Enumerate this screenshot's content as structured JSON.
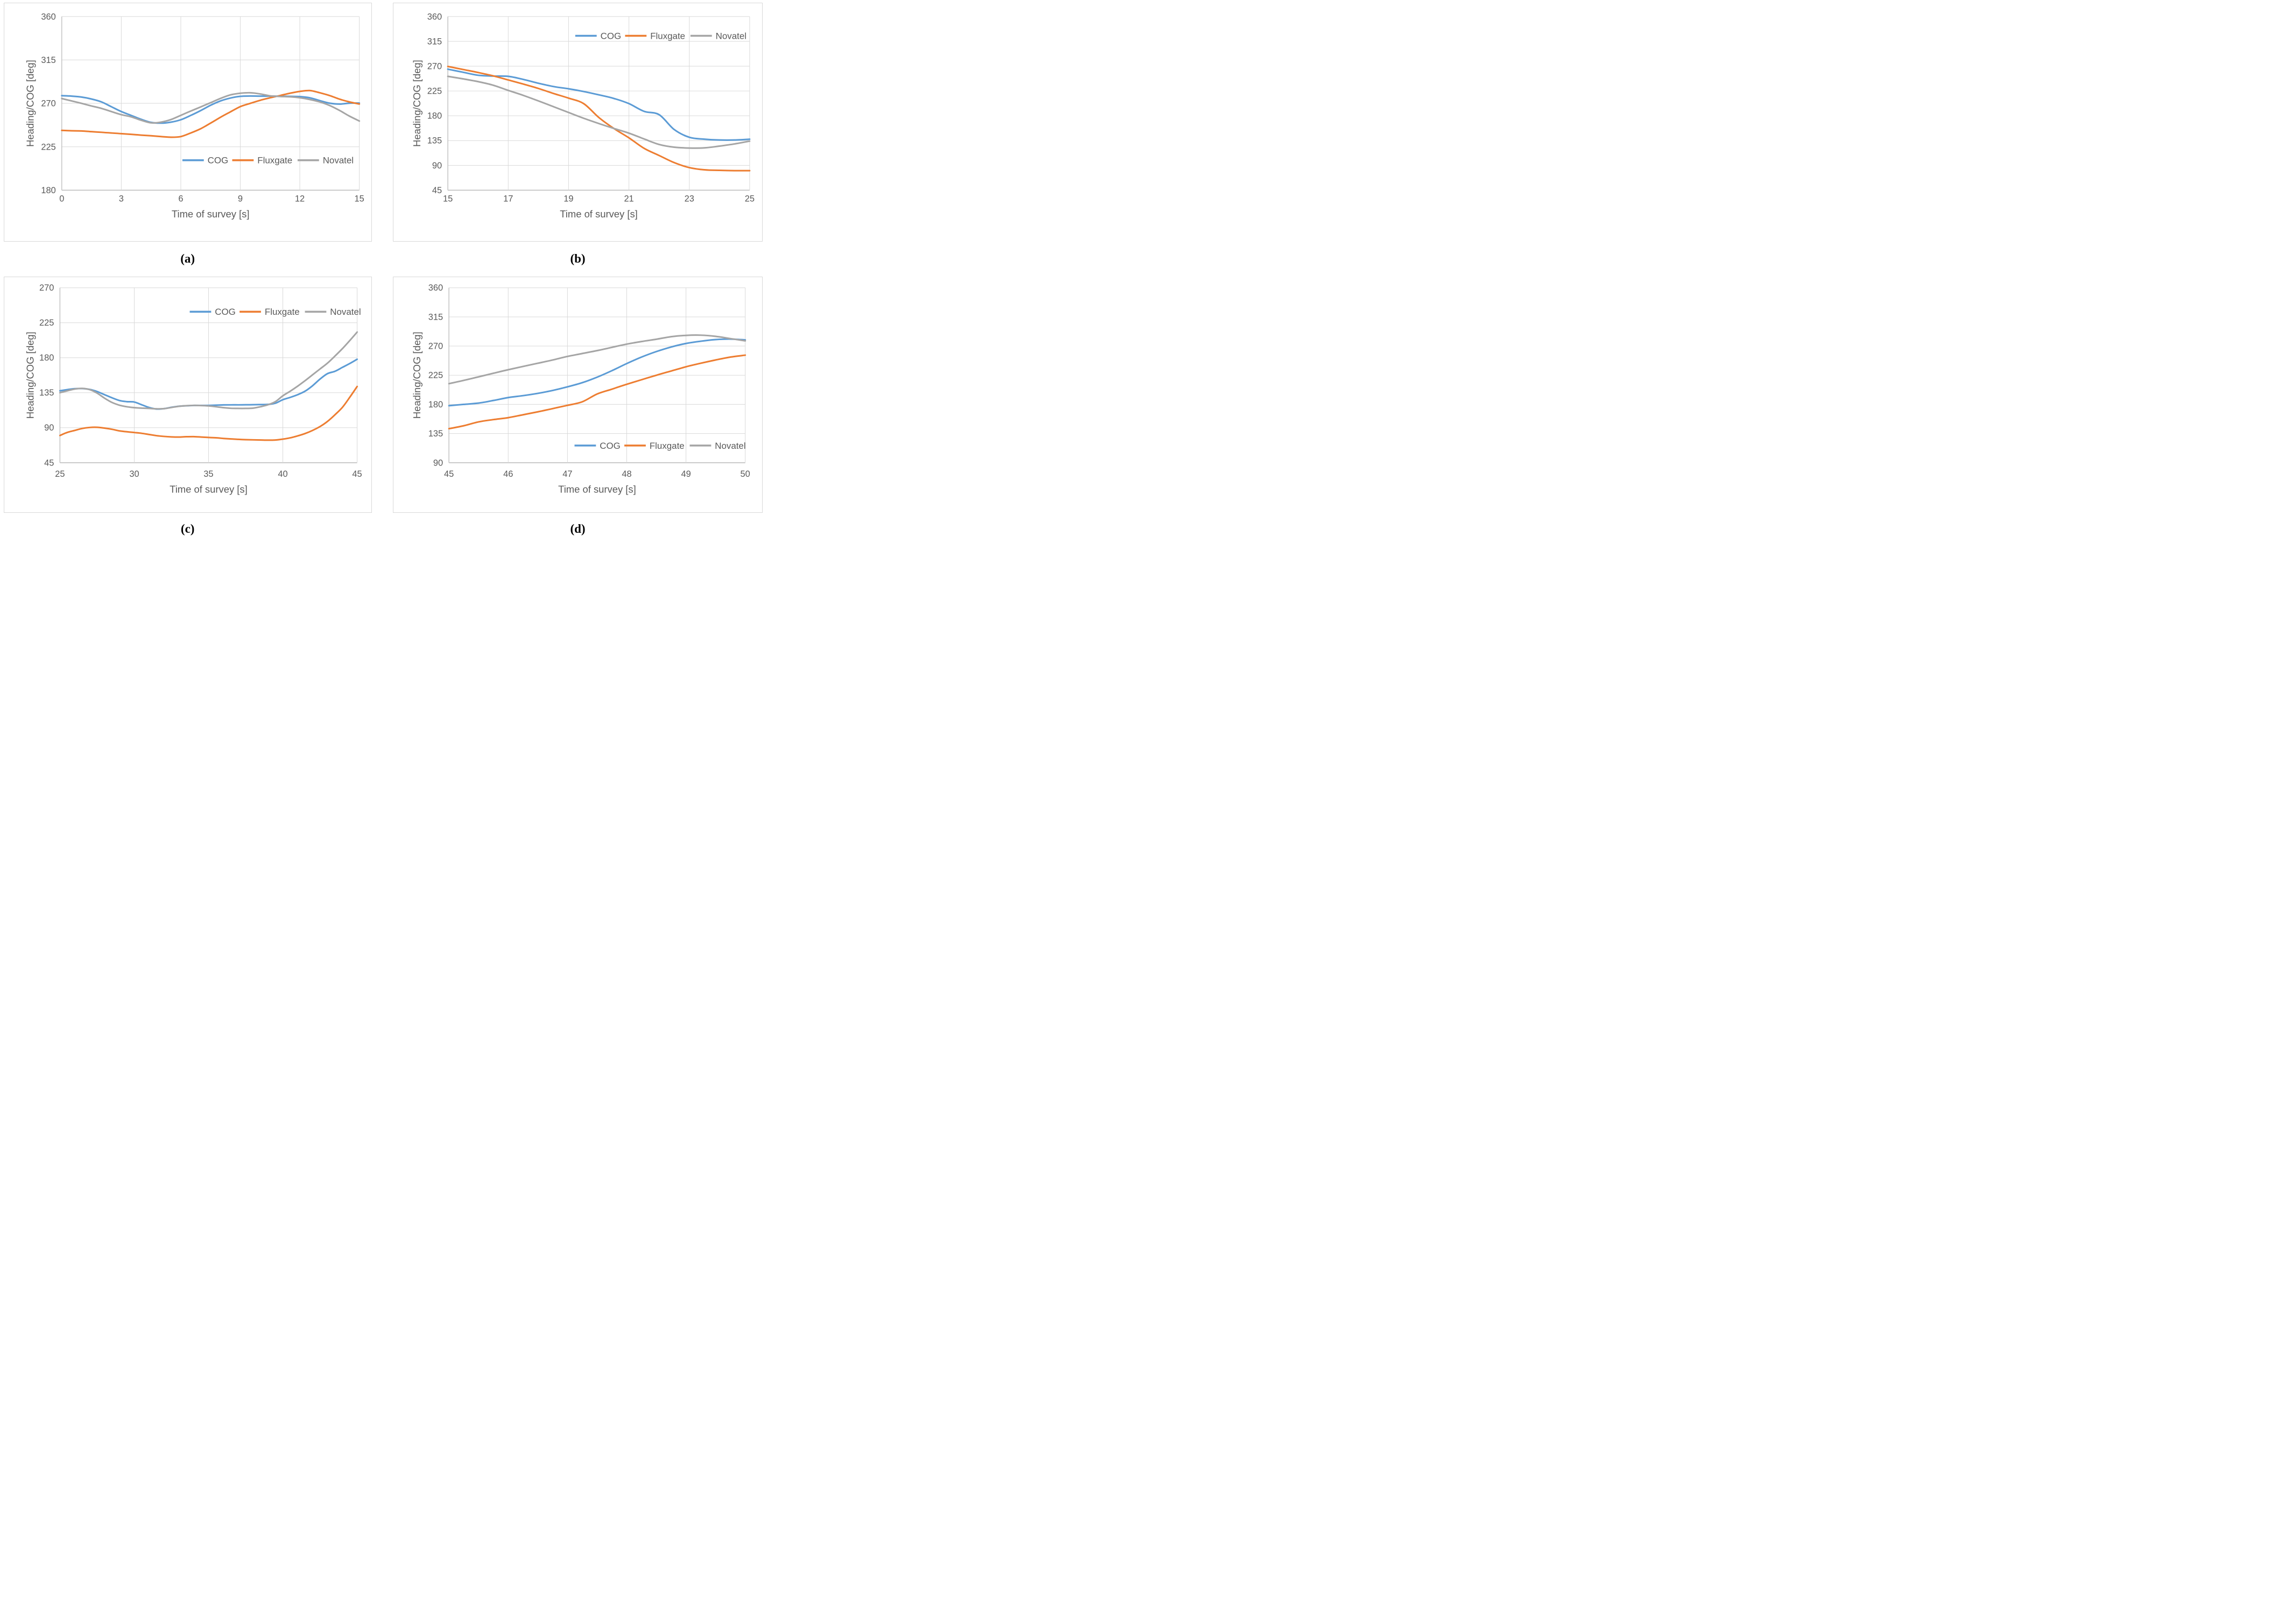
{
  "figure": {
    "description": "Four line charts comparing heading sensors over survey time windows",
    "colors": {
      "cog": "#5B9BD5",
      "fluxgate": "#ED7D31",
      "novatel": "#A5A5A5",
      "gridline": "#D9D9D9",
      "axis_line": "#BFBFBF",
      "text": "#595959",
      "box_border": "#D9D9D9",
      "background": "#FFFFFF"
    }
  },
  "captions": {
    "a": "(a)",
    "b": "(b)",
    "c": "(c)",
    "d": "(d)"
  },
  "chart_data": [
    {
      "id": "a",
      "type": "line",
      "title": "",
      "xlabel": "Time of survey [s]",
      "ylabel": "Heading/COG [deg]",
      "xlim": [
        0,
        15
      ],
      "ylim": [
        180,
        360
      ],
      "x_ticks": [
        0,
        3,
        6,
        9,
        12,
        15
      ],
      "y_ticks": [
        180,
        225,
        270,
        315,
        360
      ],
      "grid": true,
      "legend_position": "inside-bottom-right",
      "x": [
        0,
        0.5,
        1,
        1.5,
        2,
        2.5,
        3,
        3.5,
        4,
        4.5,
        5,
        5.5,
        6,
        6.5,
        7,
        7.5,
        8,
        8.5,
        9,
        9.5,
        10,
        10.5,
        11,
        11.5,
        12,
        12.5,
        13,
        13.5,
        14,
        14.5,
        15
      ],
      "series": [
        {
          "name": "COG",
          "values": [
            278,
            277.5,
            276.5,
            274.5,
            271.5,
            266.5,
            261.5,
            257.5,
            253.5,
            250.3,
            249.5,
            250.5,
            253,
            257.5,
            262.5,
            268,
            272.5,
            275.5,
            277.3,
            277.6,
            277.5,
            277.5,
            277.4,
            277.3,
            277,
            275.8,
            272.9,
            270.2,
            269.3,
            270.2,
            270.3
          ]
        },
        {
          "name": "Fluxgate",
          "values": [
            242,
            241.6,
            241.4,
            240.7,
            240,
            239.3,
            238.6,
            237.9,
            237.1,
            236.4,
            235.6,
            234.9,
            235.6,
            239.3,
            243.7,
            249.5,
            255.6,
            261.2,
            266.6,
            270,
            273.2,
            275.8,
            278.1,
            280.5,
            282.4,
            283.3,
            281,
            278.1,
            274.4,
            271.5,
            269.3
          ]
        },
        {
          "name": "Novatel",
          "values": [
            275,
            272.5,
            270,
            267.3,
            264.8,
            261.5,
            258.3,
            256,
            252.5,
            249.8,
            250.5,
            253.2,
            257.6,
            262,
            266.3,
            270.7,
            275.1,
            278.8,
            280.5,
            281,
            279.8,
            277.8,
            277.2,
            276.8,
            275.8,
            274,
            271.5,
            267.8,
            262.7,
            256.8,
            251.7
          ]
        }
      ]
    },
    {
      "id": "b",
      "type": "line",
      "title": "",
      "xlabel": "Time of survey [s]",
      "ylabel": "Heading/COG [deg]",
      "xlim": [
        15,
        25
      ],
      "ylim": [
        45,
        360
      ],
      "x_ticks": [
        15,
        17,
        19,
        21,
        23,
        25
      ],
      "y_ticks": [
        45,
        90,
        135,
        180,
        225,
        270,
        315,
        360
      ],
      "grid": true,
      "legend_position": "inside-top-right",
      "x": [
        15,
        15.5,
        16,
        16.5,
        17,
        17.5,
        18,
        18.5,
        19,
        19.5,
        20,
        20.5,
        21,
        21.5,
        22,
        22.5,
        23,
        23.5,
        24,
        24.5,
        25
      ],
      "series": [
        {
          "name": "COG",
          "values": [
            264.5,
            259,
            253.5,
            252,
            251.5,
            246,
            239,
            233,
            229,
            224,
            218,
            211.5,
            202,
            188,
            182,
            155,
            141,
            137.5,
            136,
            136,
            137.5
          ]
        },
        {
          "name": "Fluxgate",
          "values": [
            269.5,
            264,
            258.5,
            252.5,
            245,
            237.5,
            229.5,
            220.5,
            212,
            202,
            177,
            157,
            140,
            121,
            108,
            95,
            86,
            82,
            81,
            80.5,
            80.5
          ]
        },
        {
          "name": "Novatel",
          "values": [
            251.5,
            247,
            242,
            235.5,
            226,
            217,
            207,
            196.5,
            186,
            175.5,
            166,
            157,
            148.5,
            138,
            128,
            123,
            121.5,
            121.8,
            125,
            129,
            134
          ]
        }
      ]
    },
    {
      "id": "c",
      "type": "line",
      "title": "",
      "xlabel": "Time of survey [s]",
      "ylabel": "Heading/COG [deg]",
      "xlim": [
        25,
        45
      ],
      "ylim": [
        45,
        270
      ],
      "x_ticks": [
        25,
        30,
        35,
        40,
        45
      ],
      "y_ticks": [
        45,
        90,
        135,
        180,
        225,
        270
      ],
      "grid": true,
      "legend_position": "inside-top-right",
      "x": [
        25,
        25.5,
        26,
        26.5,
        27,
        27.5,
        28,
        28.5,
        29,
        29.5,
        30,
        30.5,
        31,
        31.5,
        32,
        32.5,
        33,
        33.5,
        34,
        34.5,
        35,
        35.5,
        36,
        36.5,
        37,
        37.5,
        38,
        38.5,
        39,
        39.5,
        40,
        40.5,
        41,
        41.5,
        42,
        42.5,
        43,
        43.5,
        44,
        44.5,
        45
      ],
      "series": [
        {
          "name": "COG",
          "values": [
            137.5,
            139,
            140.2,
            140.3,
            139.2,
            136.5,
            132.5,
            128.5,
            125,
            123.5,
            123,
            119.5,
            116,
            114,
            114.5,
            116.2,
            117.6,
            118.2,
            118.6,
            118.7,
            118.7,
            119,
            119.3,
            119.4,
            119.4,
            119.5,
            119.6,
            119.8,
            120,
            121.5,
            126,
            129,
            132.5,
            137,
            144,
            152.5,
            159.5,
            162.5,
            167.5,
            172.5,
            178
          ]
        },
        {
          "name": "Fluxgate",
          "values": [
            80,
            84,
            86.5,
            89,
            90.3,
            90.5,
            89.5,
            88,
            86,
            84.8,
            83.8,
            82.8,
            81.3,
            79.8,
            78.8,
            78.2,
            78,
            78.4,
            78.5,
            78,
            77.5,
            77,
            76.2,
            75.6,
            75,
            74.6,
            74.4,
            74.2,
            74,
            74.2,
            75.3,
            77,
            79.5,
            82.5,
            86.5,
            91.5,
            98,
            106.5,
            116,
            129,
            143
          ]
        },
        {
          "name": "Novatel",
          "values": [
            135,
            137.5,
            139.8,
            140.5,
            139,
            134.5,
            128,
            122.5,
            119,
            117,
            115.8,
            115.2,
            114.8,
            114.3,
            114.5,
            116,
            117.5,
            118.3,
            118.7,
            118.5,
            118,
            117,
            115.8,
            115,
            114.8,
            114.8,
            115.2,
            117,
            119.5,
            123.5,
            131,
            137,
            143.5,
            150.5,
            158,
            165.5,
            173,
            182,
            191.5,
            202,
            213
          ]
        }
      ]
    },
    {
      "id": "d",
      "type": "line",
      "title": "",
      "xlabel": "Time of survey [s]",
      "ylabel": "Heading/COG [deg]",
      "xlim": [
        45,
        50
      ],
      "ylim": [
        90,
        360
      ],
      "x_ticks": [
        45,
        46,
        47,
        48,
        49,
        50
      ],
      "y_ticks": [
        90,
        135,
        180,
        225,
        270,
        315,
        360
      ],
      "grid": true,
      "legend_position": "inside-bottom-right",
      "x": [
        45,
        45.25,
        45.5,
        45.75,
        46,
        46.25,
        46.5,
        46.75,
        47,
        47.25,
        47.5,
        47.75,
        48,
        48.25,
        48.5,
        48.75,
        49,
        49.25,
        49.5,
        49.75,
        50
      ],
      "series": [
        {
          "name": "COG",
          "values": [
            178,
            180,
            182,
            186,
            190.5,
            193.5,
            197,
            201.5,
            207,
            213.5,
            222,
            232,
            243,
            253,
            261.5,
            268.5,
            274,
            277.5,
            280,
            280.8,
            279.5
          ]
        },
        {
          "name": "Fluxgate",
          "values": [
            142.5,
            147,
            153,
            156.5,
            159.5,
            164,
            168.5,
            173.5,
            178.5,
            184,
            196,
            203.5,
            211,
            218,
            225,
            231.5,
            238,
            243.5,
            248.5,
            253,
            256
          ]
        },
        {
          "name": "Novatel",
          "values": [
            212,
            217,
            222.5,
            228,
            233.5,
            238.5,
            243.5,
            248.5,
            254,
            258.5,
            263,
            268,
            273,
            277,
            280.5,
            284.5,
            286.5,
            286.8,
            285,
            281.5,
            278
          ]
        }
      ]
    }
  ],
  "legend_labels": [
    "COG",
    "Fluxgate",
    "Novatel"
  ]
}
